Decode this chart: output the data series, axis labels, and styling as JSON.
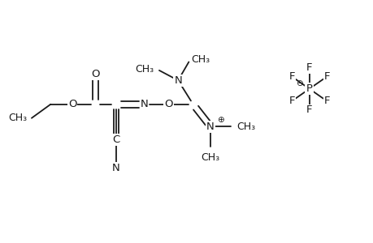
{
  "bg_color": "#ffffff",
  "line_color": "#1a1a1a",
  "lw": 1.3,
  "fs": 9.5,
  "xlim": [
    -0.3,
    10.3
  ],
  "ylim": [
    0.0,
    7.0
  ],
  "figw": 4.6,
  "figh": 3.0,
  "dpi": 100
}
